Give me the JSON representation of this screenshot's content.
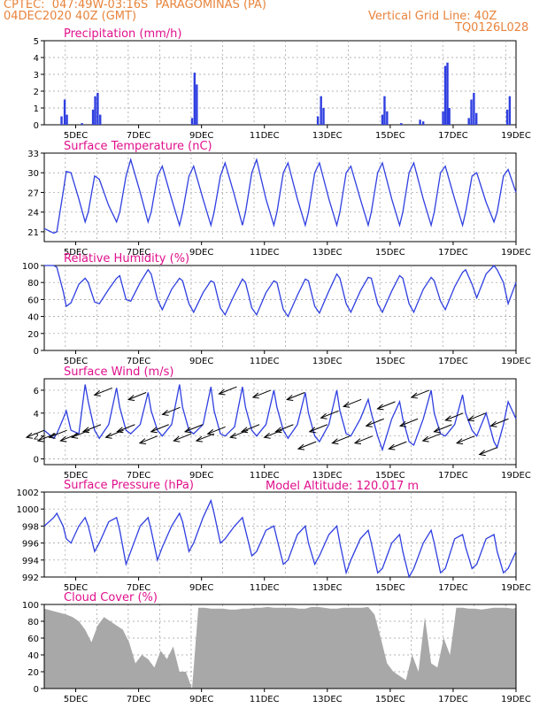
{
  "header": {
    "line1": "CPTEC:  047:49W-03:16S  PARAGOMINAS (PA)",
    "line2": "04DEC2020 40Z (GMT)",
    "grid_note": "Vertical Grid Line: 40Z",
    "code": "TQ0126L028",
    "model_altitude": "Model Altitude: 120.017 m"
  },
  "colors": {
    "header": "#e8843c",
    "title": "#e0108c",
    "series": "#2f3fe0",
    "grid": "#9a9a9a",
    "cloud": "#a8a8a8"
  },
  "date_ticks": [
    "5DEC",
    "7DEC",
    "9DEC",
    "11DEC",
    "13DEC",
    "15DEC",
    "17DEC",
    "19DEC"
  ],
  "chart_data": [
    {
      "type": "bar",
      "title": "Precipitation (mm/h)",
      "ylim": [
        0,
        5
      ],
      "yticks": [
        "0",
        "1",
        "2",
        "3",
        "4",
        "5"
      ],
      "x_range_days": [
        4.0,
        19.0
      ],
      "points": [
        [
          4.55,
          0.5
        ],
        [
          4.65,
          1.5
        ],
        [
          4.72,
          0.6
        ],
        [
          5.2,
          0.1
        ],
        [
          5.55,
          0.9
        ],
        [
          5.62,
          1.7
        ],
        [
          5.7,
          1.9
        ],
        [
          5.78,
          0.6
        ],
        [
          8.7,
          0.4
        ],
        [
          8.78,
          3.1
        ],
        [
          8.85,
          2.4
        ],
        [
          12.7,
          0.5
        ],
        [
          12.8,
          1.7
        ],
        [
          12.88,
          1.0
        ],
        [
          14.75,
          0.6
        ],
        [
          14.82,
          1.7
        ],
        [
          14.9,
          0.8
        ],
        [
          15.35,
          0.1
        ],
        [
          15.95,
          0.3
        ],
        [
          16.05,
          0.2
        ],
        [
          16.68,
          0.8
        ],
        [
          16.75,
          3.5
        ],
        [
          16.82,
          3.7
        ],
        [
          16.88,
          1.0
        ],
        [
          17.5,
          0.4
        ],
        [
          17.58,
          1.5
        ],
        [
          17.66,
          1.9
        ],
        [
          17.74,
          0.7
        ],
        [
          18.72,
          0.9
        ],
        [
          18.8,
          1.7
        ]
      ]
    },
    {
      "type": "line",
      "title": "Surface Temperature (nC)",
      "ylim": [
        19.5,
        33
      ],
      "yticks": [
        "21",
        "24",
        "27",
        "30",
        "33"
      ],
      "x": [
        4.0,
        4.3,
        4.4,
        4.6,
        4.7,
        4.85,
        5.1,
        5.3,
        5.4,
        5.6,
        5.75,
        6.05,
        6.3,
        6.4,
        6.6,
        6.75,
        7.05,
        7.3,
        7.4,
        7.6,
        7.75,
        8.05,
        8.3,
        8.4,
        8.6,
        8.75,
        9.05,
        9.3,
        9.4,
        9.6,
        9.75,
        10.05,
        10.3,
        10.4,
        10.6,
        10.75,
        11.05,
        11.3,
        11.4,
        11.6,
        11.75,
        12.05,
        12.3,
        12.4,
        12.6,
        12.75,
        13.05,
        13.3,
        13.4,
        13.6,
        13.75,
        14.05,
        14.3,
        14.4,
        14.6,
        14.75,
        15.05,
        15.3,
        15.4,
        15.6,
        15.75,
        16.05,
        16.3,
        16.4,
        16.6,
        16.75,
        17.05,
        17.3,
        17.4,
        17.6,
        17.75,
        18.05,
        18.3,
        18.4,
        18.6,
        18.75,
        19.0
      ],
      "values": [
        21.5,
        20.8,
        21.0,
        27.0,
        30.2,
        30.0,
        26.0,
        22.5,
        24.0,
        29.5,
        29.0,
        25.0,
        22.5,
        24.0,
        29.5,
        32.0,
        27.0,
        22.5,
        24.0,
        29.5,
        31.0,
        26.0,
        22.0,
        24.0,
        29.5,
        31.0,
        26.0,
        22.0,
        24.0,
        29.5,
        31.5,
        26.5,
        22.0,
        24.0,
        30.0,
        32.0,
        26.0,
        22.0,
        24.0,
        30.0,
        31.5,
        26.0,
        22.0,
        24.0,
        30.0,
        31.5,
        26.0,
        22.0,
        24.0,
        30.0,
        31.0,
        26.0,
        22.0,
        24.0,
        30.0,
        31.5,
        26.0,
        22.0,
        24.0,
        30.0,
        31.5,
        26.0,
        22.0,
        24.0,
        30.0,
        31.0,
        26.0,
        22.0,
        24.0,
        29.5,
        30.0,
        25.5,
        22.5,
        24.0,
        29.5,
        30.5,
        27.0
      ]
    },
    {
      "type": "line",
      "title": "Relative Humidity (%)",
      "ylim": [
        0,
        100
      ],
      "yticks": [
        "0",
        "20",
        "40",
        "60",
        "80",
        "100"
      ],
      "x": [
        4.0,
        4.3,
        4.4,
        4.6,
        4.7,
        4.85,
        5.1,
        5.3,
        5.4,
        5.6,
        5.75,
        6.05,
        6.3,
        6.4,
        6.6,
        6.75,
        7.05,
        7.3,
        7.4,
        7.6,
        7.75,
        8.05,
        8.3,
        8.4,
        8.6,
        8.75,
        9.05,
        9.3,
        9.4,
        9.6,
        9.75,
        10.05,
        10.3,
        10.4,
        10.6,
        10.75,
        11.05,
        11.3,
        11.4,
        11.6,
        11.75,
        12.05,
        12.3,
        12.4,
        12.6,
        12.75,
        13.05,
        13.3,
        13.4,
        13.6,
        13.75,
        14.05,
        14.3,
        14.4,
        14.6,
        14.75,
        15.05,
        15.3,
        15.4,
        15.6,
        15.75,
        16.05,
        16.3,
        16.4,
        16.6,
        16.75,
        17.05,
        17.3,
        17.4,
        17.6,
        17.75,
        18.05,
        18.3,
        18.4,
        18.6,
        18.75,
        19.0
      ],
      "values": [
        100,
        100,
        98,
        70,
        52,
        56,
        78,
        85,
        80,
        57,
        55,
        72,
        85,
        88,
        60,
        58,
        80,
        95,
        90,
        60,
        48,
        72,
        85,
        82,
        55,
        45,
        68,
        82,
        80,
        50,
        42,
        66,
        84,
        80,
        50,
        42,
        68,
        82,
        80,
        48,
        40,
        65,
        84,
        82,
        52,
        44,
        70,
        90,
        85,
        55,
        45,
        70,
        86,
        85,
        55,
        45,
        70,
        88,
        85,
        55,
        45,
        72,
        86,
        82,
        58,
        48,
        75,
        92,
        95,
        78,
        62,
        90,
        100,
        95,
        80,
        55,
        80
      ]
    },
    {
      "type": "line",
      "title": "Surface Wind (m/s)",
      "ylim": [
        -0.5,
        7
      ],
      "yticks": [
        "0",
        "2",
        "4",
        "6"
      ],
      "x": [
        4.0,
        4.3,
        4.4,
        4.6,
        4.7,
        4.85,
        5.1,
        5.3,
        5.4,
        5.6,
        5.75,
        6.05,
        6.3,
        6.4,
        6.6,
        6.75,
        7.05,
        7.3,
        7.4,
        7.6,
        7.75,
        8.05,
        8.3,
        8.4,
        8.6,
        8.75,
        9.05,
        9.3,
        9.4,
        9.6,
        9.75,
        10.05,
        10.3,
        10.4,
        10.6,
        10.75,
        11.05,
        11.3,
        11.4,
        11.6,
        11.75,
        12.05,
        12.3,
        12.4,
        12.6,
        12.75,
        13.05,
        13.3,
        13.4,
        13.6,
        13.75,
        14.05,
        14.3,
        14.4,
        14.6,
        14.75,
        15.05,
        15.3,
        15.4,
        15.6,
        15.75,
        16.05,
        16.3,
        16.4,
        16.6,
        16.75,
        17.05,
        17.3,
        17.4,
        17.6,
        17.75,
        18.05,
        18.3,
        18.4,
        18.6,
        18.75,
        19.0
      ],
      "values": [
        2.5,
        1.8,
        2.2,
        3.5,
        4.2,
        2.5,
        2.2,
        6.5,
        5.0,
        2.5,
        1.8,
        3.0,
        6.2,
        4.5,
        2.5,
        2.2,
        3.0,
        5.8,
        4.2,
        2.5,
        2.0,
        3.0,
        6.5,
        4.5,
        2.5,
        2.2,
        3.0,
        6.3,
        4.2,
        2.2,
        2.0,
        2.8,
        6.3,
        4.5,
        2.5,
        2.0,
        3.0,
        6.0,
        4.5,
        2.5,
        1.8,
        3.0,
        5.8,
        4.0,
        2.0,
        1.5,
        3.0,
        6.0,
        4.2,
        2.2,
        2.0,
        3.5,
        5.2,
        4.0,
        2.0,
        0.8,
        3.5,
        5.0,
        3.5,
        1.5,
        1.2,
        3.5,
        6.0,
        4.0,
        2.2,
        2.0,
        3.0,
        5.6,
        4.0,
        2.5,
        2.0,
        4.0,
        1.5,
        1.0,
        3.0,
        5.0,
        3.5
      ]
    },
    {
      "type": "line",
      "title": "Surface Pressure (hPa)",
      "ylim": [
        992,
        1002
      ],
      "yticks": [
        "992",
        "994",
        "996",
        "998",
        "1000",
        "1002"
      ],
      "x": [
        4.0,
        4.3,
        4.4,
        4.6,
        4.7,
        4.85,
        5.1,
        5.3,
        5.4,
        5.6,
        5.75,
        6.05,
        6.3,
        6.4,
        6.6,
        6.75,
        7.05,
        7.3,
        7.4,
        7.6,
        7.75,
        8.05,
        8.3,
        8.4,
        8.6,
        8.75,
        9.05,
        9.3,
        9.4,
        9.6,
        9.75,
        10.05,
        10.3,
        10.4,
        10.6,
        10.75,
        11.05,
        11.3,
        11.4,
        11.6,
        11.75,
        12.05,
        12.3,
        12.4,
        12.6,
        12.75,
        13.05,
        13.3,
        13.4,
        13.6,
        13.75,
        14.05,
        14.3,
        14.4,
        14.6,
        14.75,
        15.05,
        15.3,
        15.4,
        15.6,
        15.75,
        16.05,
        16.3,
        16.4,
        16.6,
        16.75,
        17.05,
        17.3,
        17.4,
        17.6,
        17.75,
        18.05,
        18.3,
        18.4,
        18.6,
        18.75,
        19.0
      ],
      "values": [
        998.0,
        999.0,
        999.5,
        998.0,
        996.5,
        996.0,
        998.0,
        999.0,
        998.0,
        995.0,
        996.0,
        998.5,
        999.0,
        997.5,
        993.5,
        995.0,
        998.0,
        999.0,
        997.5,
        994.0,
        995.5,
        998.0,
        999.5,
        998.5,
        995.0,
        996.0,
        999.0,
        1001.0,
        999.5,
        996.0,
        996.5,
        998.0,
        999.0,
        997.5,
        994.5,
        995.0,
        997.5,
        998.0,
        996.5,
        993.5,
        994.0,
        997.0,
        998.0,
        996.0,
        993.5,
        994.5,
        997.0,
        998.0,
        996.0,
        992.5,
        994.0,
        996.5,
        997.5,
        996.0,
        992.5,
        993.0,
        996.0,
        997.0,
        995.0,
        992.0,
        993.0,
        996.0,
        997.5,
        996.0,
        992.5,
        993.0,
        996.5,
        997.0,
        995.5,
        993.0,
        993.5,
        996.5,
        997.0,
        995.0,
        992.5,
        993.0,
        995.0
      ]
    },
    {
      "type": "area",
      "title": "Cloud Cover (%)",
      "ylim": [
        0,
        100
      ],
      "yticks": [
        "0",
        "20",
        "40",
        "60",
        "80",
        "100"
      ],
      "x": [
        4.0,
        4.3,
        4.5,
        4.7,
        4.9,
        5.1,
        5.3,
        5.5,
        5.7,
        5.9,
        6.1,
        6.3,
        6.5,
        6.7,
        6.9,
        7.1,
        7.3,
        7.5,
        7.7,
        7.9,
        8.1,
        8.3,
        8.5,
        8.7,
        8.9,
        9.1,
        9.3,
        9.5,
        9.7,
        9.9,
        10.1,
        10.3,
        10.5,
        10.7,
        10.9,
        11.1,
        11.3,
        11.5,
        11.7,
        11.9,
        12.1,
        12.3,
        12.5,
        12.7,
        12.9,
        13.1,
        13.3,
        13.5,
        13.7,
        13.9,
        14.1,
        14.3,
        14.5,
        14.7,
        14.9,
        15.1,
        15.3,
        15.5,
        15.7,
        15.9,
        16.1,
        16.3,
        16.5,
        16.7,
        16.9,
        17.1,
        17.3,
        17.5,
        17.7,
        17.9,
        18.1,
        18.3,
        18.5,
        18.7,
        18.9,
        19.0
      ],
      "values": [
        95,
        92,
        90,
        88,
        85,
        80,
        70,
        55,
        75,
        85,
        80,
        75,
        70,
        55,
        30,
        40,
        35,
        25,
        45,
        35,
        50,
        20,
        20,
        0,
        96,
        96,
        95,
        95,
        95,
        94,
        94,
        95,
        95,
        96,
        96,
        97,
        96,
        96,
        96,
        96,
        95,
        95,
        97,
        97,
        96,
        95,
        95,
        96,
        96,
        96,
        96,
        97,
        88,
        60,
        30,
        20,
        15,
        10,
        40,
        20,
        85,
        30,
        25,
        60,
        40,
        96,
        96,
        95,
        95,
        94,
        95,
        96,
        96,
        96,
        95,
        96
      ]
    }
  ]
}
